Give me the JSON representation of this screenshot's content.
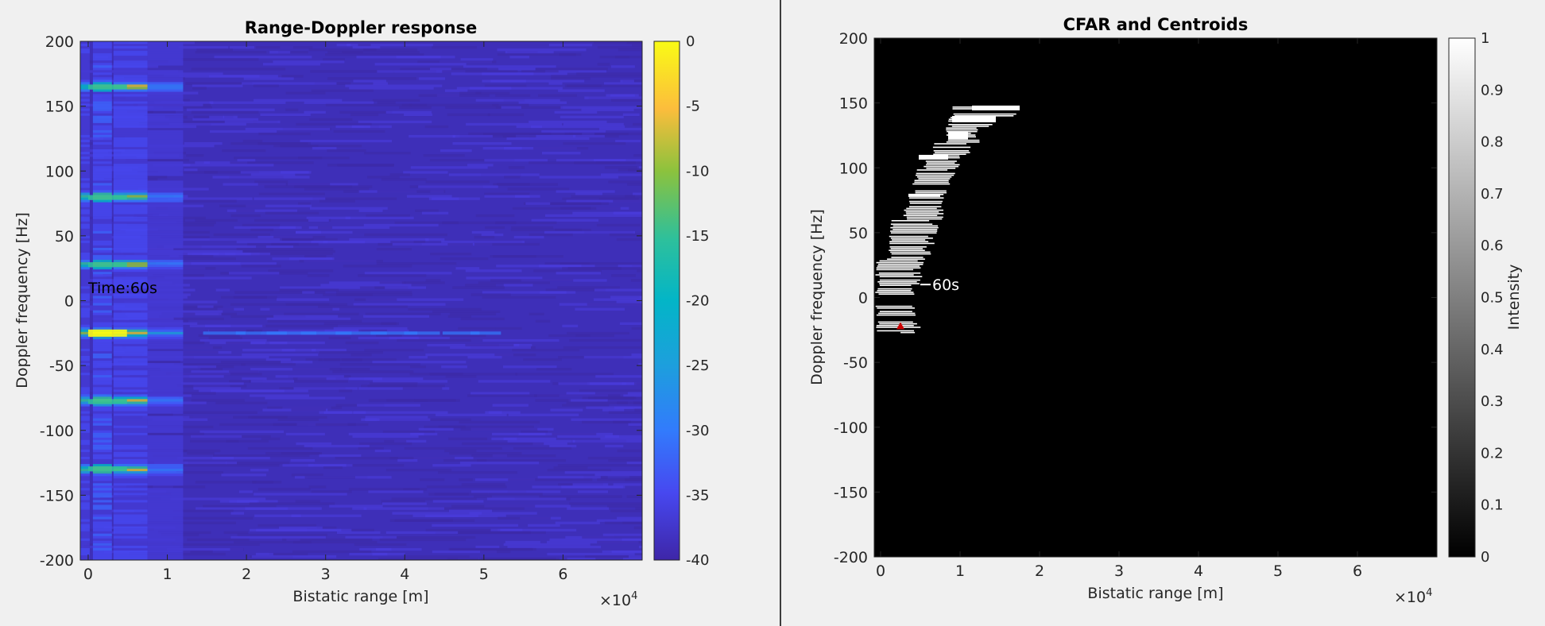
{
  "chart_data": [
    {
      "type": "heatmap",
      "title": "Range-Doppler response",
      "xlabel": "Bistatic range [m]",
      "ylabel": "Doppler frequency [Hz]",
      "x_exponent_label": "×10",
      "x_exponent": "4",
      "xlim": [
        -1000,
        70000
      ],
      "ylim": [
        -200,
        200
      ],
      "x_ticks": [
        0,
        1,
        2,
        3,
        4,
        5,
        6
      ],
      "y_ticks": [
        -200,
        -150,
        -100,
        -50,
        0,
        50,
        100,
        150,
        200
      ],
      "colorbar": {
        "colormap": "parula",
        "min": -40,
        "max": 0,
        "ticks": [
          0,
          -5,
          -10,
          -15,
          -20,
          -25,
          -30,
          -35,
          -40
        ]
      },
      "annotation": {
        "text": "Time:60s",
        "x": 0,
        "y": 10
      },
      "strong_returns_hz": [
        -25,
        -77,
        28,
        80,
        -130,
        165
      ],
      "background_level_db": -38
    },
    {
      "type": "heatmap",
      "title": "CFAR and Centroids",
      "xlabel": "Bistatic range [m]",
      "ylabel": "Doppler frequency [Hz]",
      "x_exponent_label": "×10",
      "x_exponent": "4",
      "xlim": [
        -800,
        70000
      ],
      "ylim": [
        -200,
        200
      ],
      "x_ticks": [
        0,
        1,
        2,
        3,
        4,
        5,
        6
      ],
      "y_ticks": [
        -200,
        -150,
        -100,
        -50,
        0,
        50,
        100,
        150,
        200
      ],
      "colorbar": {
        "colormap": "gray",
        "min": 0,
        "max": 1,
        "label": "Intensity",
        "ticks": [
          1,
          0.9,
          0.8,
          0.7,
          0.6,
          0.5,
          0.4,
          0.3,
          0.2,
          0.1,
          0
        ]
      },
      "annotation": {
        "text": "60s",
        "x": 5500,
        "y": 10
      },
      "centroid": {
        "x": 2500,
        "y": -22,
        "color": "#cc0000"
      }
    }
  ],
  "colors": {
    "figure_bg": "#f0f0f0",
    "divider": "#3c3c3c",
    "rd_background": "#3e2fb8",
    "cfar_background": "#000000",
    "detection": "#ffffff"
  }
}
